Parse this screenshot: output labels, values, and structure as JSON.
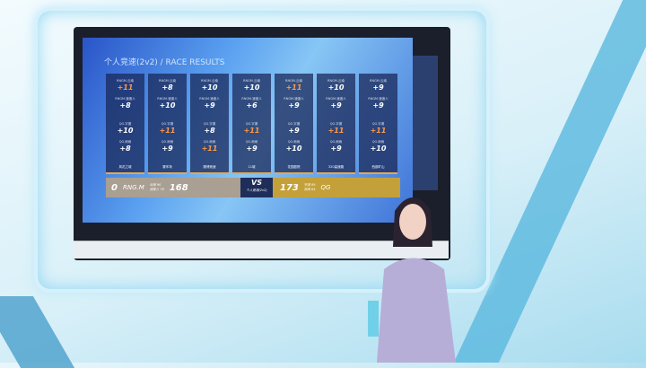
{
  "screen": {
    "title": "个人竞速(2v2)  /  RACE RESULTS",
    "columns": [
      {
        "rows": [
          {
            "name": "RNGM.云南",
            "value": "+11",
            "hi": true
          },
          {
            "name": "RNGM.速度人",
            "value": "+8"
          },
          {
            "name": "QG.宇澈",
            "value": "+10"
          },
          {
            "name": "QG.雨雨",
            "value": "+8"
          }
        ],
        "map": "风花之城"
      },
      {
        "rows": [
          {
            "name": "RNGM.云南",
            "value": "+8"
          },
          {
            "name": "RNGM.速度人",
            "value": "+10"
          },
          {
            "name": "QG.宇澈",
            "value": "+11",
            "hi": true
          },
          {
            "name": "QG.雨雨",
            "value": "+9"
          }
        ],
        "map": "赛车场"
      },
      {
        "rows": [
          {
            "name": "RNGM.云南",
            "value": "+10"
          },
          {
            "name": "RNGM.速度人",
            "value": "+9"
          },
          {
            "name": "QG.宇澈",
            "value": "+8"
          },
          {
            "name": "QG.雨雨",
            "value": "+11",
            "hi": true
          }
        ],
        "map": "赛博竞速"
      },
      {
        "rows": [
          {
            "name": "RNGM.云南",
            "value": "+10"
          },
          {
            "name": "RNGM.速度人",
            "value": "+6"
          },
          {
            "name": "QG.宇澈",
            "value": "+11",
            "hi": true
          },
          {
            "name": "QG.雨雨",
            "value": "+9"
          }
        ],
        "map": "11城"
      },
      {
        "rows": [
          {
            "name": "RNGM.云南",
            "value": "+11",
            "hi": true
          },
          {
            "name": "RNGM.速度人",
            "value": "+9"
          },
          {
            "name": "QG.宇澈",
            "value": "+9"
          },
          {
            "name": "QG.雨雨",
            "value": "+10"
          }
        ],
        "map": "花园庭院"
      },
      {
        "rows": [
          {
            "name": "RNGM.云南",
            "value": "+10"
          },
          {
            "name": "RNGM.速度人",
            "value": "+9"
          },
          {
            "name": "QG.宇澈",
            "value": "+11",
            "hi": true
          },
          {
            "name": "QG.雨雨",
            "value": "+9"
          }
        ],
        "map": "320高速路"
      },
      {
        "rows": [
          {
            "name": "RNGM.云南",
            "value": "+9"
          },
          {
            "name": "RNGM.速度人",
            "value": "+9"
          },
          {
            "name": "QG.宇澈",
            "value": "+11",
            "hi": true
          },
          {
            "name": "QG.雨雨",
            "value": "+10"
          }
        ],
        "map": "西部矿山"
      }
    ],
    "scoreboard": {
      "left_series": "0",
      "left_team": "RNG.M",
      "left_p1": "云南 90",
      "left_p2": "速度人 78",
      "left_total": "168",
      "vs": "VS",
      "mode": "个人竞速(2v2)",
      "right_total": "173",
      "right_p1": "宇澈 89",
      "right_p2": "雨雨 84",
      "right_team": "QG"
    }
  },
  "colors": {
    "highlight": "#ff9a4a",
    "left_bar": "#a99f92",
    "right_bar": "#c4a03a",
    "vs_bar": "#1e2d5a"
  }
}
